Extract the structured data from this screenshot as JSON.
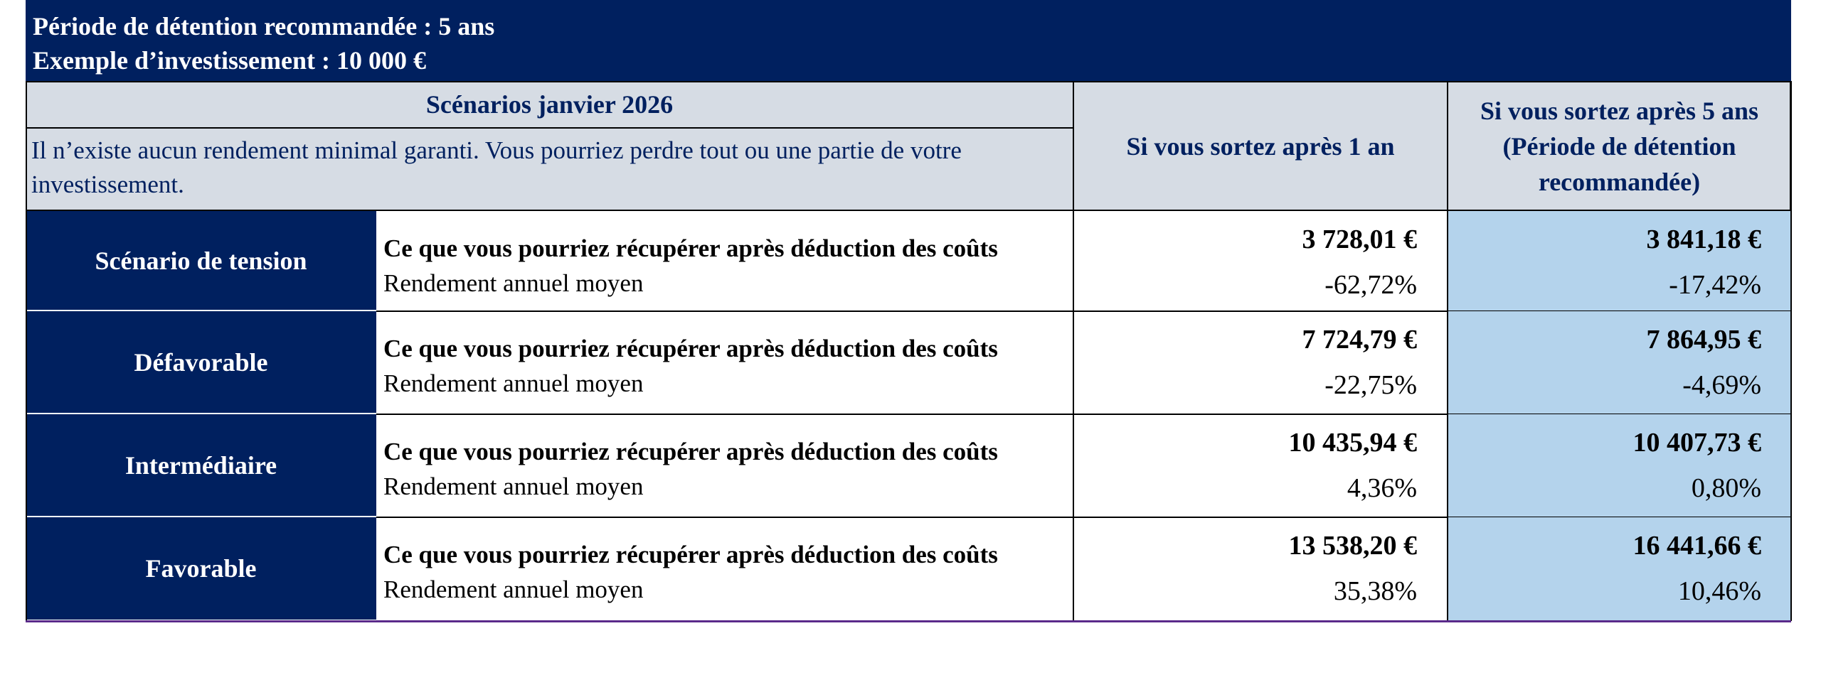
{
  "header": {
    "lines": [
      "Période de détention recommandée : 5 ans",
      "Exemple d’investissement : 10 000 €"
    ]
  },
  "table": {
    "scenario_heading": "Scénarios janvier 2026",
    "disclaimer": "Il n’existe aucun rendement minimal garanti. Vous pourriez perdre tout ou une partie de votre investissement.",
    "col_headers": [
      "Si vous sortez après 1 an",
      "Si vous sortez après 5 ans (Période de détention recommandée)"
    ],
    "rows": [
      {
        "label": "Scénario de tension",
        "description_bold": "Ce que vous pourriez récupérer après déduction des coûts",
        "description_rest": "Rendement annuel moyen",
        "after_1y": {
          "amount": "3 728,01 €",
          "return": "-62,72%"
        },
        "after_5y": {
          "amount": "3 841,18 €",
          "return": "-17,42%"
        }
      },
      {
        "label": "Défavorable",
        "description_bold": "Ce que vous pourriez récupérer après déduction des coûts",
        "description_rest": "Rendement annuel moyen",
        "after_1y": {
          "amount": "7 724,79 €",
          "return": "-22,75%"
        },
        "after_5y": {
          "amount": "7 864,95 €",
          "return": "-4,69%"
        }
      },
      {
        "label": "Intermédiaire",
        "description_bold": "Ce que vous pourriez récupérer après déduction des coûts",
        "description_rest": "Rendement annuel moyen",
        "after_1y": {
          "amount": "10 435,94 €",
          "return": "4,36%"
        },
        "after_5y": {
          "amount": "10 407,73 €",
          "return": "0,80%"
        }
      },
      {
        "label": "Favorable",
        "description_bold": "Ce que vous pourriez récupérer après déduction des coûts",
        "description_rest": "Rendement annuel moyen",
        "after_1y": {
          "amount": "13 538,20 €",
          "return": "35,38%"
        },
        "after_5y": {
          "amount": "16 441,66 €",
          "return": "10,46%"
        }
      }
    ]
  }
}
